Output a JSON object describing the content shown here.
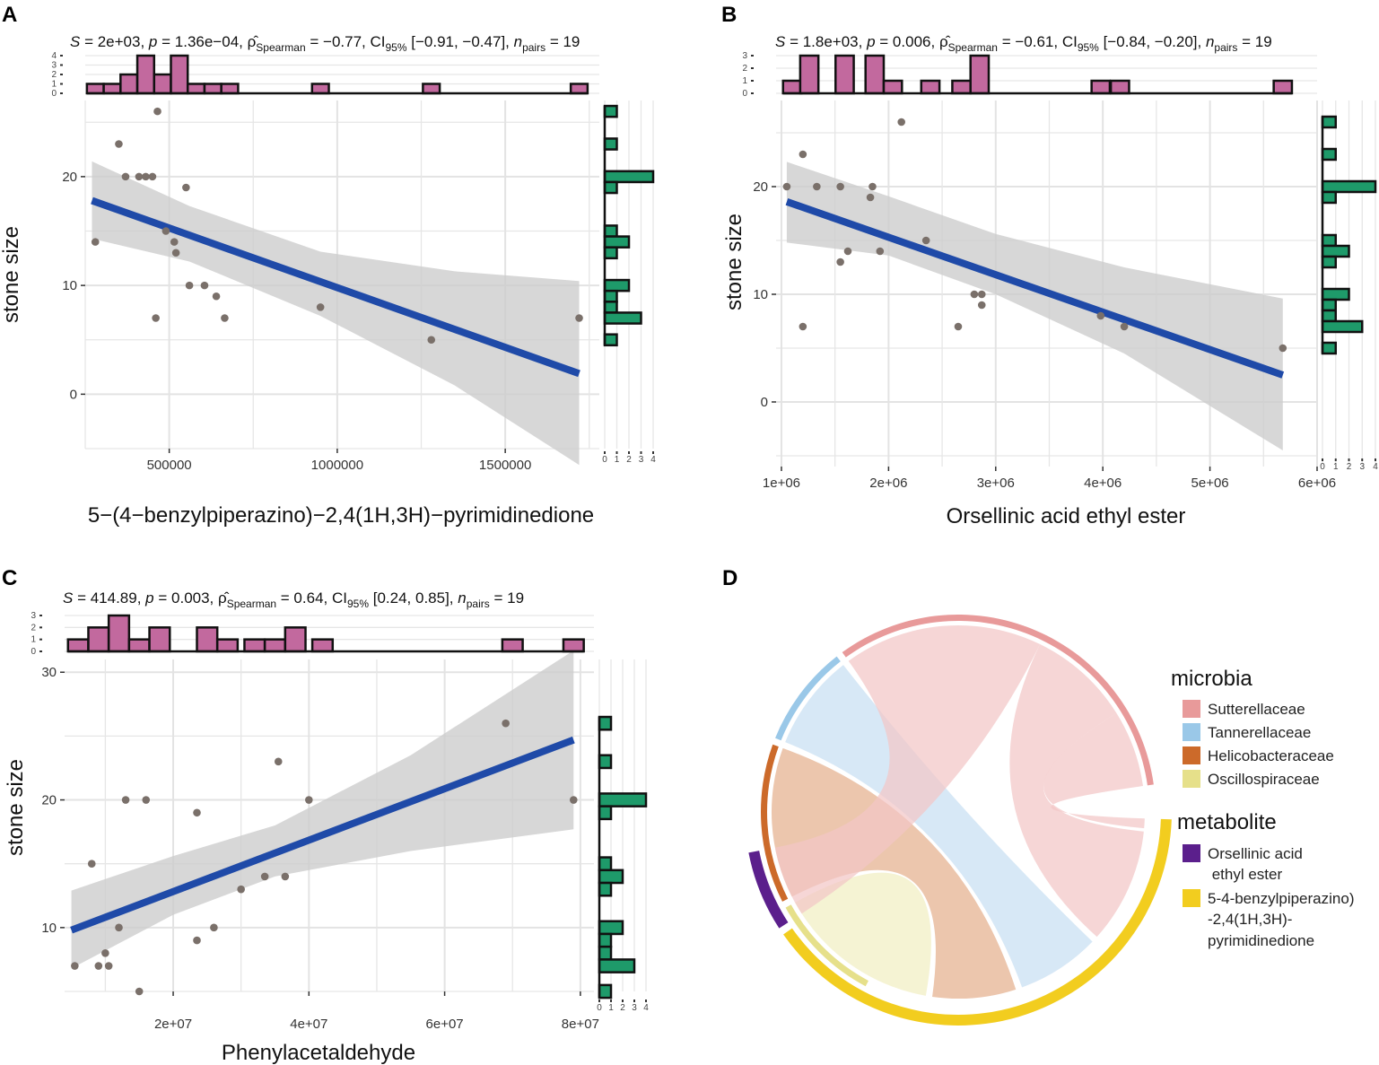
{
  "panels": {
    "A": {
      "letter": "A",
      "stats": {
        "s": "S = 2e+03",
        "p": "p = 1.36e−04",
        "rho": "= −0.77",
        "ci": "[−0.91, −0.47]",
        "n": "= 19"
      },
      "xlabel": "5−(4−benzylpiperazino)−2,4(1H,3H)−pyrimidinedione",
      "ylabel": "stone size"
    },
    "B": {
      "letter": "B",
      "stats": {
        "s": "S = 1.8e+03",
        "p": "p = 0.006",
        "rho": "= −0.61",
        "ci": "[−0.84, −0.20]",
        "n": "= 19"
      },
      "xlabel": "Orsellinic acid ethyl ester",
      "ylabel": "stone size"
    },
    "C": {
      "letter": "C",
      "stats": {
        "s": "S = 414.89",
        "p": "p = 0.003",
        "rho": "= 0.64",
        "ci": "[0.24, 0.85]",
        "n": "= 19"
      },
      "xlabel": "Phenylacetaldehyde",
      "ylabel": "stone size"
    },
    "D": {
      "letter": "D"
    }
  },
  "stat_labels": {
    "rho_hat": "ρ̂",
    "rho_sub": "Spearman",
    "ci": "CI",
    "ci_sub": "95%",
    "n": "n",
    "n_sub": "pairs"
  },
  "legend": {
    "microbia_title": "microbia",
    "microbia": [
      {
        "label": "Sutterellaceae",
        "color": "#e89a9a"
      },
      {
        "label": "Tannerellaceae",
        "color": "#9ac8e8"
      },
      {
        "label": "Helicobacteraceae",
        "color": "#cc6a2a"
      },
      {
        "label": "Oscillospiraceae",
        "color": "#e6e08a"
      }
    ],
    "metabolite_title": "metabolite",
    "metabolite": [
      {
        "label_lines": [
          "Orsellinic acid",
          " ethyl ester"
        ],
        "color": "#5b1f8c"
      },
      {
        "label_lines": [
          "5-4-benzylpiperazino)",
          "-2,4(1H,3H)-",
          "pyrimidinedione"
        ],
        "color": "#f2cd1f"
      }
    ]
  },
  "chart_data": [
    {
      "type": "scatter",
      "panel": "A",
      "xlabel": "5−(4−benzylpiperazino)−2,4(1H,3H)−pyrimidinedione",
      "ylabel": "stone size",
      "xlim": [
        250000,
        1780000
      ],
      "ylim": [
        -5,
        27
      ],
      "xticks": [
        500000,
        1000000,
        1500000
      ],
      "xtick_labels": [
        "500000",
        "1000000",
        "1500000"
      ],
      "yticks": [
        0,
        10,
        20
      ],
      "points": [
        [
          280000,
          14
        ],
        [
          350000,
          23
        ],
        [
          370000,
          20
        ],
        [
          410000,
          20
        ],
        [
          430000,
          20
        ],
        [
          450000,
          20
        ],
        [
          460000,
          7
        ],
        [
          465000,
          26
        ],
        [
          490000,
          15
        ],
        [
          515000,
          14
        ],
        [
          520000,
          13
        ],
        [
          550000,
          19
        ],
        [
          560000,
          10
        ],
        [
          605000,
          10
        ],
        [
          640000,
          9
        ],
        [
          665000,
          7
        ],
        [
          950000,
          8
        ],
        [
          1280000,
          5
        ],
        [
          1720000,
          7
        ]
      ],
      "fit": {
        "x0": 270000,
        "y0": 17.8,
        "x1": 1720000,
        "y1": 1.9
      },
      "ci_band": {
        "x": [
          270000,
          560000,
          950000,
          1350000,
          1720000
        ],
        "lo": [
          14.3,
          12.2,
          7.2,
          0.8,
          -6.5
        ],
        "hi": [
          21.4,
          17.3,
          13.1,
          11.3,
          10.4
        ]
      },
      "top_hist": {
        "bins": [
          [
            280000,
            1
          ],
          [
            330000,
            1
          ],
          [
            380000,
            2
          ],
          [
            430000,
            4
          ],
          [
            480000,
            2
          ],
          [
            530000,
            4
          ],
          [
            580000,
            1
          ],
          [
            630000,
            1
          ],
          [
            680000,
            1
          ],
          [
            950000,
            1
          ],
          [
            1280000,
            1
          ],
          [
            1720000,
            1
          ]
        ],
        "binwidth": 50000,
        "ymax": 4
      },
      "right_hist": {
        "bins": [
          [
            26,
            1
          ],
          [
            23,
            1
          ],
          [
            20,
            4
          ],
          [
            19,
            1
          ],
          [
            15,
            1
          ],
          [
            14,
            2
          ],
          [
            13,
            1
          ],
          [
            10,
            2
          ],
          [
            9,
            1
          ],
          [
            8,
            1
          ],
          [
            7,
            3
          ],
          [
            5,
            1
          ]
        ],
        "binwidth": 1,
        "xmax": 4
      }
    },
    {
      "type": "scatter",
      "panel": "B",
      "xlabel": "Orsellinic acid ethyl ester",
      "ylabel": "stone size",
      "xlim": [
        950000,
        6000000
      ],
      "ylim": [
        -6,
        28
      ],
      "xticks": [
        1000000,
        2000000,
        3000000,
        4000000,
        5000000,
        6000000
      ],
      "xtick_labels": [
        "1e+06",
        "2e+06",
        "3e+06",
        "4e+06",
        "5e+06",
        "6e+06"
      ],
      "yticks": [
        0,
        10,
        20
      ],
      "points": [
        [
          1050000,
          20
        ],
        [
          1200000,
          23
        ],
        [
          1200000,
          7
        ],
        [
          1330000,
          20
        ],
        [
          1550000,
          20
        ],
        [
          1550000,
          13
        ],
        [
          1620000,
          14
        ],
        [
          1830000,
          19
        ],
        [
          1850000,
          20
        ],
        [
          1920000,
          14
        ],
        [
          2120000,
          26
        ],
        [
          2350000,
          15
        ],
        [
          2650000,
          7
        ],
        [
          2800000,
          10
        ],
        [
          2870000,
          10
        ],
        [
          2870000,
          9
        ],
        [
          3980000,
          8
        ],
        [
          4200000,
          7
        ],
        [
          5680000,
          5
        ]
      ],
      "fit": {
        "x0": 1050000,
        "y0": 18.6,
        "x1": 5680000,
        "y1": 2.5
      },
      "ci_band": {
        "x": [
          1050000,
          2000000,
          3000000,
          4200000,
          5680000
        ],
        "lo": [
          14.8,
          13.6,
          10.0,
          4.5,
          -4.5
        ],
        "hi": [
          22.3,
          19.1,
          15.6,
          12.5,
          9.6
        ]
      },
      "top_hist": {
        "bins": [
          [
            1100000,
            1
          ],
          [
            1260000,
            3
          ],
          [
            1590000,
            3
          ],
          [
            1870000,
            3
          ],
          [
            2040000,
            1
          ],
          [
            2390000,
            1
          ],
          [
            2680000,
            1
          ],
          [
            2850000,
            3
          ],
          [
            3980000,
            1
          ],
          [
            4160000,
            1
          ],
          [
            5680000,
            1
          ]
        ],
        "binwidth": 170000,
        "ymax": 3
      },
      "right_hist": {
        "bins": [
          [
            26,
            1
          ],
          [
            23,
            1
          ],
          [
            20,
            4
          ],
          [
            19,
            1
          ],
          [
            15,
            1
          ],
          [
            14,
            2
          ],
          [
            13,
            1
          ],
          [
            10,
            2
          ],
          [
            9,
            1
          ],
          [
            8,
            1
          ],
          [
            7,
            3
          ],
          [
            5,
            1
          ]
        ],
        "binwidth": 1,
        "xmax": 4
      }
    },
    {
      "type": "scatter",
      "panel": "C",
      "xlabel": "Phenylacetaldehyde",
      "ylabel": "stone size",
      "xlim": [
        4000000,
        82000000
      ],
      "ylim": [
        5,
        31
      ],
      "xticks": [
        20000000,
        40000000,
        60000000,
        80000000
      ],
      "xtick_labels": [
        "2e+07",
        "4e+07",
        "6e+07",
        "8e+07"
      ],
      "yticks": [
        10,
        20,
        30
      ],
      "points": [
        [
          5500000,
          7
        ],
        [
          8000000,
          15
        ],
        [
          9000000,
          7
        ],
        [
          10000000,
          8
        ],
        [
          10500000,
          7
        ],
        [
          12000000,
          10
        ],
        [
          13000000,
          20
        ],
        [
          15000000,
          5
        ],
        [
          16000000,
          20
        ],
        [
          23500000,
          19
        ],
        [
          23500000,
          9
        ],
        [
          26000000,
          10
        ],
        [
          30000000,
          13
        ],
        [
          33500000,
          14
        ],
        [
          35500000,
          23
        ],
        [
          36500000,
          14
        ],
        [
          40000000,
          20
        ],
        [
          69000000,
          26
        ],
        [
          79000000,
          20
        ]
      ],
      "fit": {
        "x0": 5000000,
        "y0": 9.8,
        "x1": 79000000,
        "y1": 24.7
      },
      "ci_band": {
        "x": [
          5000000,
          20000000,
          35000000,
          55000000,
          79000000
        ],
        "lo": [
          6.8,
          11.0,
          14.0,
          16.0,
          17.7
        ],
        "hi": [
          12.9,
          15.6,
          18.0,
          23.5,
          31.7
        ]
      },
      "top_hist": {
        "bins": [
          [
            6000000,
            1
          ],
          [
            9000000,
            2
          ],
          [
            12000000,
            3
          ],
          [
            15000000,
            1
          ],
          [
            18000000,
            2
          ],
          [
            25000000,
            2
          ],
          [
            28000000,
            1
          ],
          [
            32000000,
            1
          ],
          [
            35000000,
            1
          ],
          [
            38000000,
            2
          ],
          [
            42000000,
            1
          ],
          [
            70000000,
            1
          ],
          [
            79000000,
            1
          ]
        ],
        "binwidth": 3000000,
        "ymax": 3
      },
      "right_hist": {
        "bins": [
          [
            26,
            1
          ],
          [
            23,
            1
          ],
          [
            20,
            4
          ],
          [
            19,
            1
          ],
          [
            15,
            1
          ],
          [
            14,
            2
          ],
          [
            13,
            1
          ],
          [
            10,
            2
          ],
          [
            9,
            1
          ],
          [
            8,
            1
          ],
          [
            7,
            3
          ],
          [
            5,
            1
          ]
        ],
        "binwidth": 1,
        "xmax": 4
      }
    },
    {
      "type": "chord",
      "panel": "D",
      "sectors": [
        {
          "name": "Orsellinic acid ethyl ester",
          "group": "metabolite",
          "color": "#5b1f8c",
          "start": 191,
          "end": 213
        },
        {
          "name": "5-4-benzylpiperazino)-2,4(1H,3H)-pyrimidinedione",
          "group": "metabolite",
          "color": "#f2cd1f",
          "start": 215,
          "end": 358
        },
        {
          "name": "Sutterellaceae",
          "group": "microbia",
          "color": "#e89a9a",
          "start": 8,
          "end": 126
        },
        {
          "name": "Tannerellaceae",
          "group": "microbia",
          "color": "#9ac8e8",
          "start": 128,
          "end": 158
        },
        {
          "name": "Helicobacteraceae",
          "group": "microbia",
          "color": "#cc6a2a",
          "start": 160,
          "end": 207
        },
        {
          "name": "Oscillospiraceae",
          "group": "microbia",
          "color": "#e6e08a",
          "start": 209,
          "end": 242
        }
      ],
      "links": [
        {
          "from": "Sutterellaceae",
          "to": "5-4-benzylpiperazino)-2,4(1H,3H)-pyrimidinedione",
          "color": "#f2c6c6",
          "a": [
            32,
            64
          ],
          "b": [
            318,
            354
          ]
        },
        {
          "from": "Tannerellaceae",
          "to": "5-4-benzylpiperazino)-2,4(1H,3H)-pyrimidinedione",
          "color": "#c7dff2",
          "a": [
            128,
            158
          ],
          "b": [
            290,
            316
          ]
        },
        {
          "from": "Helicobacteraceae",
          "to": "5-4-benzylpiperazino)-2,4(1H,3H)-pyrimidinedione",
          "color": "#e4b08e",
          "a": [
            160,
            207
          ],
          "b": [
            262,
            288
          ]
        },
        {
          "from": "Oscillospiraceae",
          "to": "5-4-benzylpiperazino)-2,4(1H,3H)-pyrimidinedione",
          "color": "#f1eec2",
          "a": [
            209,
            242
          ],
          "b": [
            217,
            260
          ]
        },
        {
          "from": "Sutterellaceae",
          "to": "Orsellinic acid ethyl ester",
          "color": "#f2c6c6",
          "a": [
            64,
            126
          ],
          "b": [
            191,
            213
          ]
        }
      ],
      "link_self": {
        "name": "Sutterellaceae",
        "color": "#f2c6c6",
        "a": [
          8,
          32
        ],
        "b": [
          355,
          358
        ]
      }
    }
  ]
}
